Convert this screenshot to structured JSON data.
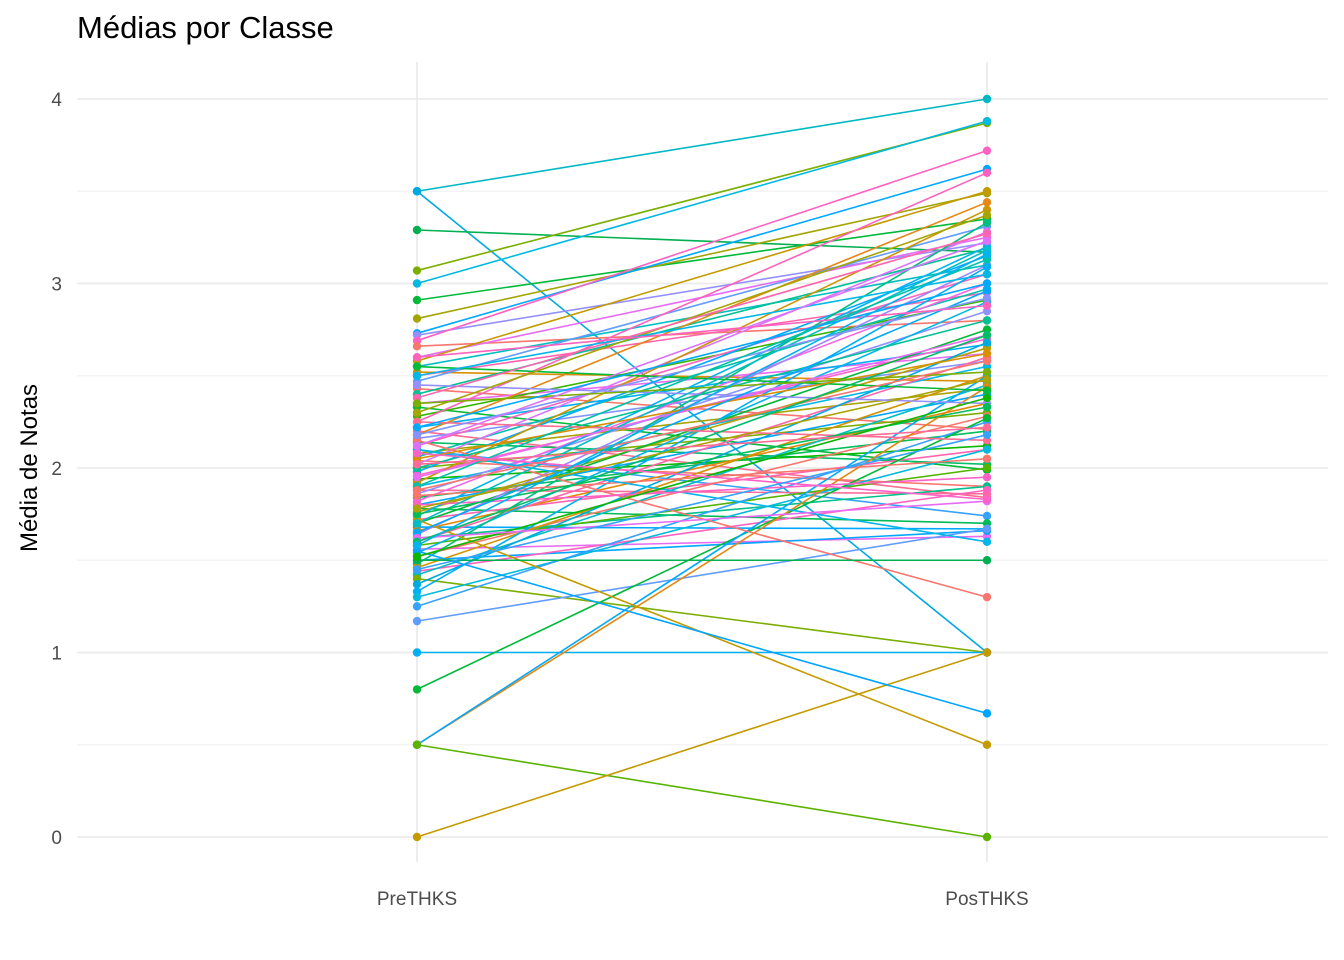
{
  "chart_data": {
    "type": "line",
    "title": "Médias por Classe",
    "xlabel": "",
    "ylabel": "Média de Notas",
    "categories": [
      "PreTHKS",
      "PosTHKS"
    ],
    "y_ticks": [
      0,
      1,
      2,
      3,
      4
    ],
    "ylim": [
      -0.14,
      4.2
    ],
    "grid": true,
    "legend": "none",
    "series": [
      {
        "values": [
          3.5,
          4.0
        ],
        "color": "#00B8C4"
      },
      {
        "values": [
          3.5,
          1.0
        ],
        "color": "#00A9E0"
      },
      {
        "values": [
          3.29,
          3.17
        ],
        "color": "#00B050"
      },
      {
        "values": [
          3.07,
          3.87
        ],
        "color": "#7CAE00"
      },
      {
        "values": [
          3.0,
          3.88
        ],
        "color": "#00B9E3"
      },
      {
        "values": [
          2.91,
          3.35
        ],
        "color": "#00BA38"
      },
      {
        "values": [
          2.81,
          3.49
        ],
        "color": "#A3A500"
      },
      {
        "values": [
          2.73,
          3.62
        ],
        "color": "#00A8FF"
      },
      {
        "values": [
          2.72,
          3.22
        ],
        "color": "#9590FF"
      },
      {
        "values": [
          2.69,
          3.72
        ],
        "color": "#FF61C3"
      },
      {
        "values": [
          2.66,
          2.8
        ],
        "color": "#F8766D"
      },
      {
        "values": [
          2.6,
          3.25
        ],
        "color": "#E76BF3"
      },
      {
        "values": [
          2.58,
          3.5
        ],
        "color": "#C49A00"
      },
      {
        "values": [
          2.55,
          3.1
        ],
        "color": "#00BFC4"
      },
      {
        "values": [
          2.52,
          2.47
        ],
        "color": "#D89000"
      },
      {
        "values": [
          2.5,
          2.95
        ],
        "color": "#FF65AE"
      },
      {
        "values": [
          2.47,
          3.31
        ],
        "color": "#619CFF"
      },
      {
        "values": [
          2.43,
          2.21
        ],
        "color": "#F8766D"
      },
      {
        "values": [
          2.4,
          3.19
        ],
        "color": "#00C094"
      },
      {
        "values": [
          2.35,
          2.62
        ],
        "color": "#E76BF3"
      },
      {
        "values": [
          2.33,
          1.99
        ],
        "color": "#00BA38"
      },
      {
        "values": [
          2.28,
          2.91
        ],
        "color": "#39B600"
      },
      {
        "values": [
          2.25,
          3.6
        ],
        "color": "#FF62BC"
      },
      {
        "values": [
          2.22,
          2.67
        ],
        "color": "#00B0F6"
      },
      {
        "values": [
          2.2,
          1.84
        ],
        "color": "#FF6C91"
      },
      {
        "values": [
          2.18,
          3.44
        ],
        "color": "#E68613"
      },
      {
        "values": [
          2.16,
          2.58
        ],
        "color": "#8494FF"
      },
      {
        "values": [
          2.14,
          2.02
        ],
        "color": "#00BE67"
      },
      {
        "values": [
          2.12,
          3.05
        ],
        "color": "#FF62BC"
      },
      {
        "values": [
          2.1,
          1.74
        ],
        "color": "#35A2FF"
      },
      {
        "values": [
          2.08,
          2.43
        ],
        "color": "#ABA300"
      },
      {
        "values": [
          2.06,
          2.97
        ],
        "color": "#00C1A9"
      },
      {
        "values": [
          2.04,
          1.9
        ],
        "color": "#F8766D"
      },
      {
        "values": [
          2.02,
          3.28
        ],
        "color": "#DB72FB"
      },
      {
        "values": [
          2.0,
          2.3
        ],
        "color": "#7CAE00"
      },
      {
        "values": [
          1.98,
          3.15
        ],
        "color": "#00A9FF"
      },
      {
        "values": [
          1.96,
          2.7
        ],
        "color": "#FF61C9"
      },
      {
        "values": [
          1.94,
          2.12
        ],
        "color": "#0CB702"
      },
      {
        "values": [
          1.92,
          3.4
        ],
        "color": "#CD9600"
      },
      {
        "values": [
          1.9,
          2.55
        ],
        "color": "#00B8E7"
      },
      {
        "values": [
          1.88,
          1.86
        ],
        "color": "#FF6A98"
      },
      {
        "values": [
          1.86,
          2.85
        ],
        "color": "#8F91FF"
      },
      {
        "values": [
          1.84,
          2.2
        ],
        "color": "#00BD5C"
      },
      {
        "values": [
          1.82,
          3.0
        ],
        "color": "#F564E3"
      },
      {
        "values": [
          1.8,
          2.4
        ],
        "color": "#00A5FF"
      },
      {
        "values": [
          1.78,
          1.7
        ],
        "color": "#00BC56"
      },
      {
        "values": [
          1.76,
          2.65
        ],
        "color": "#B79F00"
      },
      {
        "values": [
          1.74,
          3.2
        ],
        "color": "#00B4EF"
      },
      {
        "values": [
          1.72,
          2.1
        ],
        "color": "#FF64B0"
      },
      {
        "values": [
          1.7,
          2.75
        ],
        "color": "#00BA38"
      },
      {
        "values": [
          1.68,
          1.67
        ],
        "color": "#00A6FF"
      },
      {
        "values": [
          1.66,
          2.35
        ],
        "color": "#E58700"
      },
      {
        "values": [
          1.64,
          3.1
        ],
        "color": "#9E84FF"
      },
      {
        "values": [
          1.62,
          1.9
        ],
        "color": "#00C08B"
      },
      {
        "values": [
          1.6,
          2.6
        ],
        "color": "#FF66A8"
      },
      {
        "values": [
          1.58,
          2.0
        ],
        "color": "#53B400"
      },
      {
        "values": [
          1.56,
          1.63
        ],
        "color": "#E76BF3"
      },
      {
        "values": [
          1.54,
          2.9
        ],
        "color": "#00B6EB"
      },
      {
        "values": [
          1.52,
          2.28
        ],
        "color": "#F8766D"
      },
      {
        "values": [
          1.5,
          1.66
        ],
        "color": "#00A7FF"
      },
      {
        "values": [
          1.48,
          3.33
        ],
        "color": "#00BF7D"
      },
      {
        "values": [
          1.46,
          2.5
        ],
        "color": "#D39200"
      },
      {
        "values": [
          1.44,
          1.88
        ],
        "color": "#FF62BE"
      },
      {
        "values": [
          1.42,
          2.45
        ],
        "color": "#00BFC4"
      },
      {
        "values": [
          1.4,
          1.0
        ],
        "color": "#7CAE00"
      },
      {
        "values": [
          1.37,
          2.68
        ],
        "color": "#00A9E0"
      },
      {
        "values": [
          1.33,
          3.09
        ],
        "color": "#00B0F6"
      },
      {
        "values": [
          1.3,
          2.1
        ],
        "color": "#00BBDB"
      },
      {
        "values": [
          1.25,
          2.25
        ],
        "color": "#35A2FF"
      },
      {
        "values": [
          1.17,
          1.67
        ],
        "color": "#619CFF"
      },
      {
        "values": [
          1.0,
          1.0
        ],
        "color": "#00B0F6"
      },
      {
        "values": [
          0.8,
          2.27
        ],
        "color": "#00BA38"
      },
      {
        "values": [
          0.5,
          2.44
        ],
        "color": "#E68613"
      },
      {
        "values": [
          0.5,
          2.5
        ],
        "color": "#00A9FF"
      },
      {
        "values": [
          0.5,
          0.0
        ],
        "color": "#5BB300"
      },
      {
        "values": [
          0.0,
          1.0
        ],
        "color": "#C49A00"
      },
      {
        "values": [
          1.72,
          0.5
        ],
        "color": "#C49A00"
      },
      {
        "values": [
          1.55,
          0.67
        ],
        "color": "#00A5FF"
      },
      {
        "values": [
          2.15,
          1.3
        ],
        "color": "#F8766D"
      },
      {
        "values": [
          1.5,
          1.5
        ],
        "color": "#00B050"
      },
      {
        "values": [
          2.55,
          2.42
        ],
        "color": "#00BA38"
      },
      {
        "values": [
          1.85,
          2.05
        ],
        "color": "#F8766D"
      },
      {
        "values": [
          2.1,
          1.6
        ],
        "color": "#00B6EB"
      },
      {
        "values": [
          1.8,
          1.95
        ],
        "color": "#FF61C3"
      },
      {
        "values": [
          2.45,
          2.35
        ],
        "color": "#9590FF"
      },
      {
        "values": [
          2.0,
          2.8
        ],
        "color": "#00C094"
      },
      {
        "values": [
          1.95,
          2.72
        ],
        "color": "#E76BF3"
      },
      {
        "values": [
          2.3,
          3.37
        ],
        "color": "#A3A500"
      },
      {
        "values": [
          1.7,
          3.18
        ],
        "color": "#00BFC4"
      },
      {
        "values": [
          2.25,
          2.15
        ],
        "color": "#FF6C91"
      },
      {
        "values": [
          2.05,
          2.62
        ],
        "color": "#D89000"
      },
      {
        "values": [
          1.65,
          2.96
        ],
        "color": "#00A8FF"
      },
      {
        "values": [
          2.38,
          3.27
        ],
        "color": "#FF65AE"
      },
      {
        "values": [
          1.75,
          2.33
        ],
        "color": "#00BD5C"
      },
      {
        "values": [
          2.18,
          2.92
        ],
        "color": "#8494FF"
      },
      {
        "values": [
          1.52,
          2.38
        ],
        "color": "#0CB702"
      },
      {
        "values": [
          1.62,
          1.82
        ],
        "color": "#E76BF3"
      },
      {
        "values": [
          2.5,
          3.05
        ],
        "color": "#00B8E7"
      },
      {
        "values": [
          2.6,
          2.88
        ],
        "color": "#FF62BC"
      },
      {
        "values": [
          1.9,
          3.13
        ],
        "color": "#00C1A9"
      },
      {
        "values": [
          2.08,
          1.83
        ],
        "color": "#FF61C9"
      },
      {
        "values": [
          2.35,
          2.52
        ],
        "color": "#7CAE00"
      },
      {
        "values": [
          1.45,
          2.18
        ],
        "color": "#35A2FF"
      },
      {
        "values": [
          1.88,
          2.58
        ],
        "color": "#F8766D"
      },
      {
        "values": [
          2.12,
          3.23
        ],
        "color": "#DB72FB"
      },
      {
        "values": [
          1.6,
          2.72
        ],
        "color": "#00BE67"
      },
      {
        "values": [
          1.78,
          2.48
        ],
        "color": "#ABA300"
      },
      {
        "values": [
          2.22,
          3.0
        ],
        "color": "#00A9FF"
      },
      {
        "values": [
          2.02,
          2.22
        ],
        "color": "#FF6A98"
      },
      {
        "values": [
          1.58,
          3.16
        ],
        "color": "#00B4EF"
      }
    ]
  }
}
